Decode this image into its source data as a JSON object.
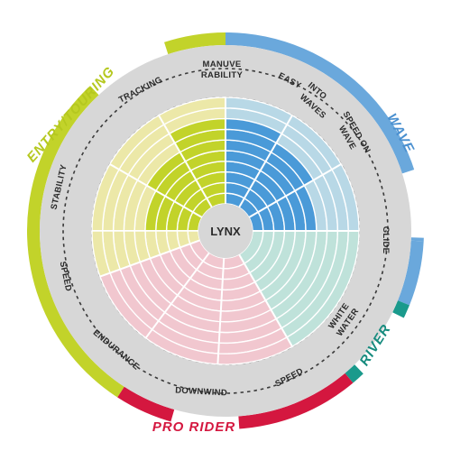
{
  "board": {
    "name": "LYNX"
  },
  "categories": [
    {
      "name": "ENTRY/TOURING",
      "color": "#c2d32a",
      "label_color": "#b5c81f"
    },
    {
      "name": "WAVE",
      "color": "#6aa8dc",
      "label_color": "#4a90d0"
    },
    {
      "name": "RIVER",
      "color": "#1a9a8c",
      "label_color": "#168b7e"
    },
    {
      "name": "PRO RIDER",
      "color": "#d4173f",
      "label_color": "#d4173f"
    }
  ],
  "attributes": [
    {
      "label": "MANUVE",
      "label2": "RABILITY"
    },
    {
      "label": "EASY",
      "label2": "INTO"
    },
    {
      "label": "WAVES",
      "label2": ""
    },
    {
      "label": "SPEED ON",
      "label2": "WAVE"
    },
    {
      "label": "GLIDE",
      "label2": ""
    },
    {
      "label": "WHITE",
      "label2": "WATER"
    },
    {
      "label": "SPEED",
      "label2": ""
    },
    {
      "label": "DOWNWIND",
      "label2": ""
    },
    {
      "label": "ENDURANCE",
      "label2": ""
    },
    {
      "label": "SPEED",
      "label2": ""
    },
    {
      "label": "STABILITY",
      "label2": ""
    },
    {
      "label": "TRACKING",
      "label2": ""
    }
  ],
  "sectors": [
    {
      "category": "ENTRY/TOURING",
      "light": "#ece8a8",
      "dark": "#c2d32a",
      "items": [
        "STABILITY",
        "TRACKING",
        "MANUVE RABILITY"
      ],
      "values": [
        5,
        6,
        8
      ]
    },
    {
      "category": "WAVE",
      "light": "#b8d8e6",
      "dark": "#4a9ad8",
      "items": [
        "EASY INTO WAVES",
        "SPEED ON WAVE",
        "GLIDE"
      ],
      "values": [
        8,
        7,
        6
      ]
    },
    {
      "category": "RIVER",
      "light": "#bfe2da",
      "dark": "#7cc8b8",
      "items": [
        "WHITE WATER"
      ],
      "values": [
        0
      ]
    },
    {
      "category": "PRO RIDER",
      "light": "#f1c7cf",
      "dark": "#e07b90",
      "items": [
        "SPEED",
        "DOWNWIND",
        "ENDURANCE"
      ],
      "values": [
        0,
        0,
        0
      ]
    },
    {
      "category": "ENTRY/TOURING",
      "light": "#ece8a8",
      "dark": "#c2d32a",
      "items": [
        "SPEED"
      ],
      "values": [
        0
      ]
    }
  ],
  "scale": {
    "rings": 10
  }
}
